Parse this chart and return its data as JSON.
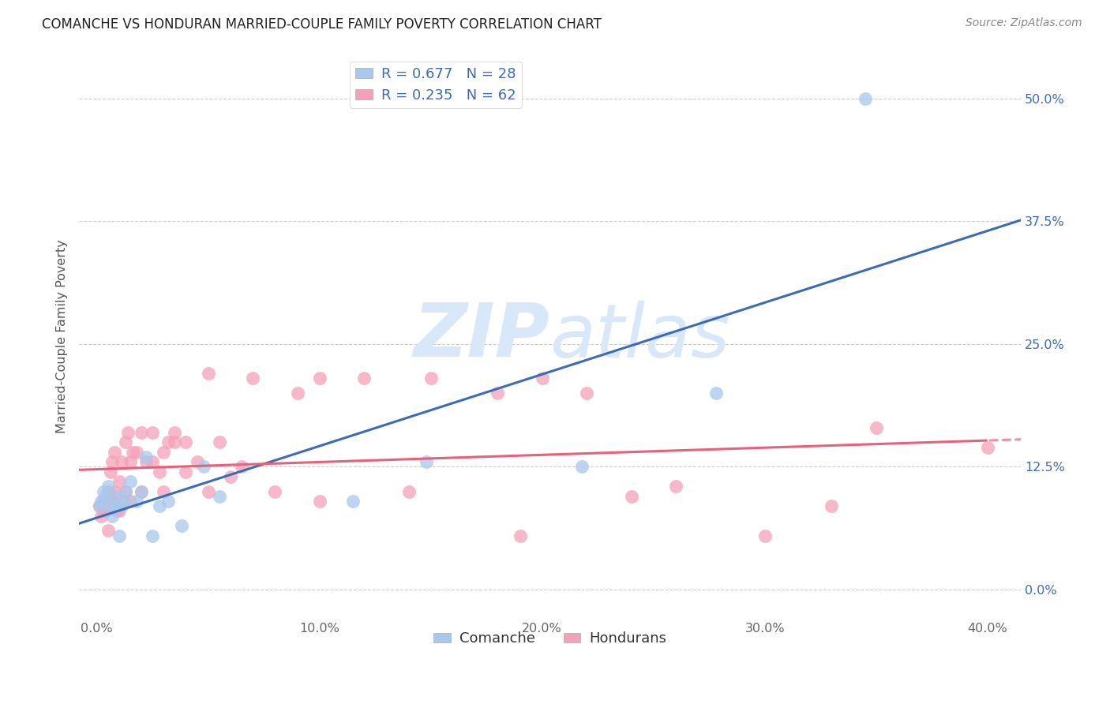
{
  "title": "COMANCHE VS HONDURAN MARRIED-COUPLE FAMILY POVERTY CORRELATION CHART",
  "source": "Source: ZipAtlas.com",
  "xlabel_ticks": [
    "0.0%",
    "10.0%",
    "20.0%",
    "30.0%",
    "40.0%"
  ],
  "ylabel_ticks": [
    "0.0%",
    "12.5%",
    "25.0%",
    "37.5%",
    "50.0%"
  ],
  "xlabel_vals": [
    0.0,
    0.1,
    0.2,
    0.3,
    0.4
  ],
  "ylabel_vals": [
    0.0,
    0.125,
    0.25,
    0.375,
    0.5
  ],
  "xlim": [
    -0.008,
    0.415
  ],
  "ylim": [
    -0.03,
    0.545
  ],
  "legend_blue_r": "R = 0.677",
  "legend_blue_n": "N = 28",
  "legend_pink_r": "R = 0.235",
  "legend_pink_n": "N = 62",
  "legend_label_blue": "Comanche",
  "legend_label_pink": "Hondurans",
  "blue_scatter_color": "#A8C8ED",
  "pink_scatter_color": "#F5A0B8",
  "blue_line_color": "#3D6BB5",
  "pink_line_color": "#E8607A",
  "watermark_zip": "ZIP",
  "watermark_atlas": "atlas",
  "watermark_color": "#D8E8F8",
  "ylabel_label": "Married-Couple Family Poverty",
  "comanche_x": [
    0.001,
    0.002,
    0.003,
    0.004,
    0.005,
    0.006,
    0.007,
    0.008,
    0.009,
    0.01,
    0.011,
    0.012,
    0.013,
    0.015,
    0.018,
    0.02,
    0.022,
    0.025,
    0.028,
    0.032,
    0.038,
    0.048,
    0.055,
    0.115,
    0.148,
    0.218,
    0.278,
    0.345
  ],
  "comanche_y": [
    0.085,
    0.09,
    0.1,
    0.095,
    0.105,
    0.085,
    0.075,
    0.095,
    0.085,
    0.055,
    0.085,
    0.09,
    0.1,
    0.11,
    0.09,
    0.1,
    0.135,
    0.055,
    0.085,
    0.09,
    0.065,
    0.125,
    0.095,
    0.09,
    0.13,
    0.125,
    0.2,
    0.5
  ],
  "honduran_x": [
    0.001,
    0.002,
    0.003,
    0.003,
    0.004,
    0.005,
    0.005,
    0.006,
    0.006,
    0.007,
    0.007,
    0.008,
    0.008,
    0.009,
    0.01,
    0.01,
    0.011,
    0.012,
    0.013,
    0.013,
    0.014,
    0.015,
    0.015,
    0.016,
    0.018,
    0.02,
    0.02,
    0.022,
    0.025,
    0.025,
    0.028,
    0.03,
    0.03,
    0.032,
    0.035,
    0.035,
    0.04,
    0.04,
    0.045,
    0.05,
    0.05,
    0.055,
    0.06,
    0.065,
    0.07,
    0.08,
    0.09,
    0.1,
    0.1,
    0.12,
    0.14,
    0.15,
    0.18,
    0.19,
    0.2,
    0.22,
    0.24,
    0.26,
    0.3,
    0.33,
    0.35,
    0.4
  ],
  "honduran_y": [
    0.085,
    0.075,
    0.08,
    0.09,
    0.08,
    0.1,
    0.06,
    0.09,
    0.12,
    0.09,
    0.13,
    0.1,
    0.14,
    0.08,
    0.08,
    0.11,
    0.13,
    0.09,
    0.1,
    0.15,
    0.16,
    0.09,
    0.13,
    0.14,
    0.14,
    0.1,
    0.16,
    0.13,
    0.13,
    0.16,
    0.12,
    0.1,
    0.14,
    0.15,
    0.15,
    0.16,
    0.12,
    0.15,
    0.13,
    0.22,
    0.1,
    0.15,
    0.115,
    0.125,
    0.215,
    0.1,
    0.2,
    0.09,
    0.215,
    0.215,
    0.1,
    0.215,
    0.2,
    0.055,
    0.215,
    0.2,
    0.095,
    0.105,
    0.055,
    0.085,
    0.165,
    0.145
  ]
}
